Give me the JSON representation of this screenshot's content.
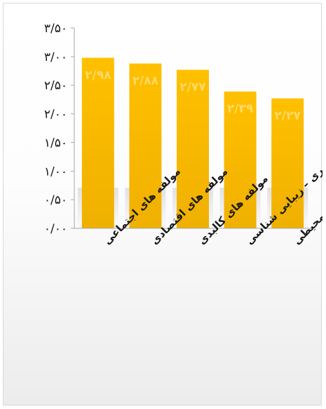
{
  "chart_data": {
    "type": "bar",
    "title": "",
    "xlabel": "",
    "ylabel": "",
    "ylim": [
      0,
      3.5
    ],
    "y_ticks": [
      {
        "value": 0,
        "label": "۰/۰۰"
      },
      {
        "value": 0.5,
        "label": "۰/۵۰"
      },
      {
        "value": 1.0,
        "label": "۱/۰۰"
      },
      {
        "value": 1.5,
        "label": "۱/۵۰"
      },
      {
        "value": 2.0,
        "label": "۲/۰۰"
      },
      {
        "value": 2.5,
        "label": "۲/۵۰"
      },
      {
        "value": 3.0,
        "label": "۳/۰۰"
      },
      {
        "value": 3.5,
        "label": "۳/۵۰"
      }
    ],
    "categories": [
      "مولفه های اجتماعی",
      "مولفه های اقتصادی",
      "مولفه های کالبدی",
      "مولفه های بصری – زیبایی شناسی",
      "مولفه های زیست محیطی"
    ],
    "values": [
      2.98,
      2.88,
      2.77,
      2.39,
      2.27
    ],
    "data_labels": [
      "۲/۹۸",
      "۲/۸۸",
      "۲/۷۷",
      "۲/۳۹",
      "۲/۲۷"
    ],
    "grid": false,
    "legend": "none",
    "colors": {
      "bar_top": "#ffc000",
      "bar_bottom": "#f0b000",
      "data_label": "#ffd966",
      "axis": "#a6a6a6",
      "text": "#1a1a1a"
    }
  }
}
